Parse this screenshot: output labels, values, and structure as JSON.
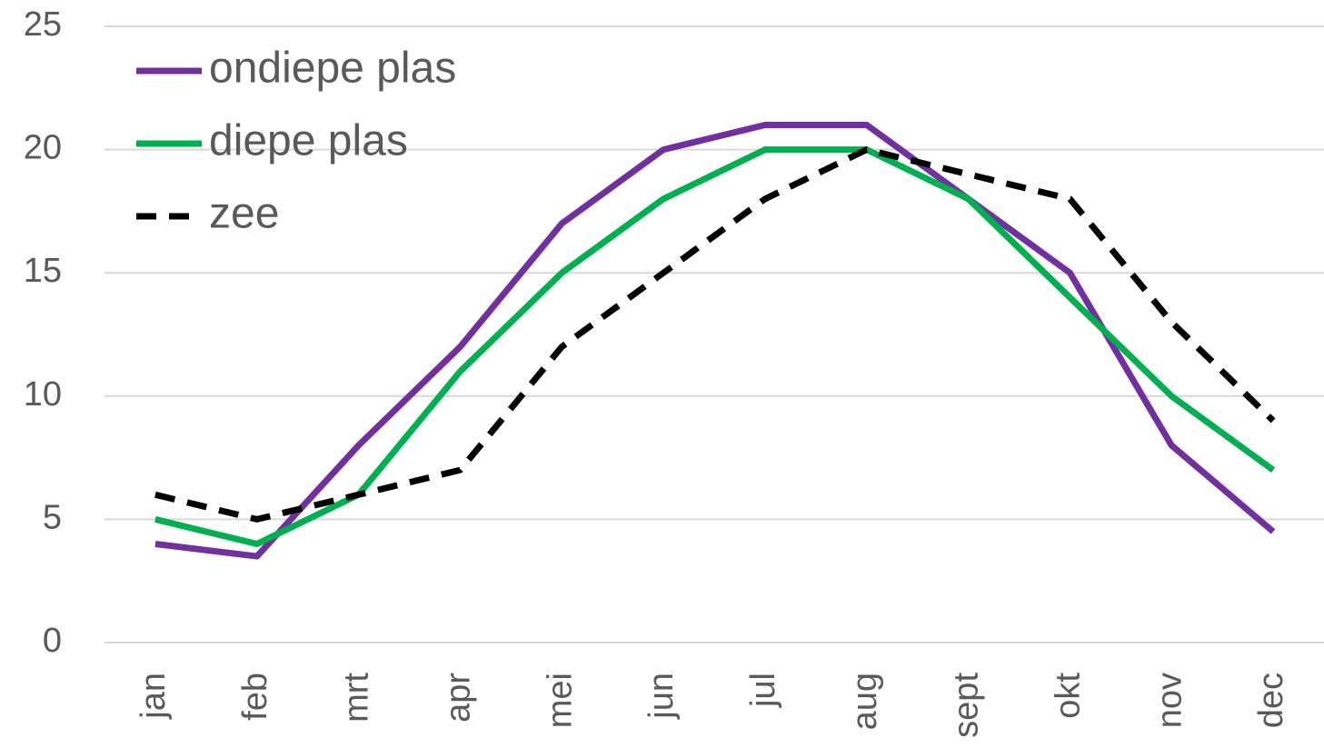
{
  "chart_data": {
    "type": "line",
    "categories": [
      "jan",
      "feb",
      "mrt",
      "apr",
      "mei",
      "jun",
      "jul",
      "aug",
      "sept",
      "okt",
      "nov",
      "dec"
    ],
    "series": [
      {
        "name": "ondiepe plas",
        "color": "#7030a0",
        "dashed": false,
        "values": [
          4,
          3.5,
          8,
          12,
          17,
          20,
          21,
          21,
          18,
          15,
          8,
          4.5
        ]
      },
      {
        "name": "diepe plas",
        "color": "#00b050",
        "dashed": false,
        "values": [
          5,
          4,
          6,
          11,
          15,
          18,
          20,
          20,
          18,
          14,
          10,
          7
        ]
      },
      {
        "name": "zee",
        "color": "#000000",
        "dashed": true,
        "values": [
          6,
          5,
          6,
          7,
          12,
          15,
          18,
          20,
          19,
          18,
          13,
          9
        ]
      }
    ],
    "ylim": [
      0,
      25
    ],
    "yticks": [
      0,
      5,
      10,
      15,
      20,
      25
    ],
    "grid": true,
    "legend": "top-left"
  }
}
